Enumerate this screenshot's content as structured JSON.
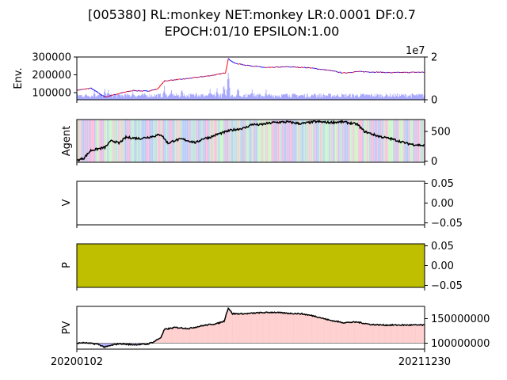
{
  "title": {
    "line1": "[005380] RL:monkey NET:monkey LR:0.0001 DF:0.7",
    "line2": "EPOCH:01/10 EPSILON:1.00"
  },
  "x_labels": {
    "start": "20200102",
    "end": "20211230"
  },
  "colors": {
    "price_up": "#ff0000",
    "price_down": "#0000ff",
    "volume": "#0000ff",
    "agent_line": "#000000",
    "buy_band": "#ff69b4",
    "sell_band": "#6495ed",
    "hold_band": "#90ee90",
    "policy_fill": "#bfbf00",
    "pv_profit_fill": "#ffcccc",
    "pv_loss_fill": "#aaaaff"
  },
  "chart_data": [
    {
      "type": "line",
      "name": "env",
      "ylabel": "Env.",
      "ylim": [
        60000,
        300000
      ],
      "yticks": [
        "100000",
        "200000",
        "300000"
      ],
      "secondary_ylim": [
        0,
        20000000
      ],
      "secondary_yticks": [
        "0",
        "2"
      ],
      "secondary_offset_label": "1e7",
      "price_keyframes": [
        [
          0,
          113000
        ],
        [
          20,
          125000
        ],
        [
          40,
          75000
        ],
        [
          60,
          95000
        ],
        [
          80,
          112000
        ],
        [
          100,
          108000
        ],
        [
          115,
          120000
        ],
        [
          125,
          165000
        ],
        [
          135,
          170000
        ],
        [
          150,
          175000
        ],
        [
          170,
          185000
        ],
        [
          190,
          195000
        ],
        [
          205,
          205000
        ],
        [
          212,
          212000
        ],
        [
          216,
          290000
        ],
        [
          225,
          265000
        ],
        [
          240,
          255000
        ],
        [
          270,
          240000
        ],
        [
          300,
          245000
        ],
        [
          330,
          240000
        ],
        [
          360,
          225000
        ],
        [
          380,
          210000
        ],
        [
          400,
          218000
        ],
        [
          430,
          215000
        ],
        [
          447,
          212000
        ],
        [
          496,
          215000
        ]
      ],
      "volume_baseline": 2000000,
      "volume_spikes": [
        [
          25,
          5000000
        ],
        [
          40,
          6500000
        ],
        [
          45,
          5500000
        ],
        [
          80,
          4500000
        ],
        [
          125,
          7000000
        ],
        [
          135,
          5000000
        ],
        [
          150,
          6000000
        ],
        [
          170,
          4500000
        ],
        [
          190,
          5500000
        ],
        [
          200,
          6000000
        ],
        [
          210,
          9000000
        ],
        [
          216,
          18000000
        ],
        [
          230,
          7000000
        ],
        [
          250,
          6000000
        ],
        [
          270,
          5000000
        ],
        [
          300,
          4000000
        ],
        [
          340,
          3500000
        ]
      ]
    },
    {
      "type": "line",
      "name": "agent",
      "ylabel": "Agent",
      "ylim": [
        -20,
        700
      ],
      "yticks": [
        "0",
        "500"
      ],
      "keyframes": [
        [
          0,
          10
        ],
        [
          10,
          50
        ],
        [
          20,
          180
        ],
        [
          40,
          230
        ],
        [
          50,
          350
        ],
        [
          60,
          300
        ],
        [
          70,
          400
        ],
        [
          90,
          380
        ],
        [
          110,
          420
        ],
        [
          120,
          450
        ],
        [
          130,
          300
        ],
        [
          140,
          350
        ],
        [
          150,
          370
        ],
        [
          170,
          310
        ],
        [
          180,
          380
        ],
        [
          190,
          400
        ],
        [
          200,
          450
        ],
        [
          220,
          520
        ],
        [
          240,
          560
        ],
        [
          250,
          620
        ],
        [
          260,
          610
        ],
        [
          280,
          650
        ],
        [
          300,
          660
        ],
        [
          320,
          630
        ],
        [
          340,
          665
        ],
        [
          360,
          650
        ],
        [
          380,
          660
        ],
        [
          400,
          620
        ],
        [
          410,
          500
        ],
        [
          430,
          420
        ],
        [
          450,
          370
        ],
        [
          470,
          300
        ],
        [
          480,
          280
        ],
        [
          496,
          260
        ]
      ]
    },
    {
      "type": "line",
      "name": "value",
      "ylabel": "V",
      "ylim": [
        -0.055,
        0.055
      ],
      "yticks": [
        "0.05",
        "0.00",
        "−0.05"
      ]
    },
    {
      "type": "area",
      "name": "policy",
      "ylabel": "P",
      "ylim": [
        -0.055,
        0.055
      ],
      "yticks": [
        "0.05",
        "0.00",
        "−0.05"
      ]
    },
    {
      "type": "area",
      "name": "pv",
      "ylabel": "PV",
      "ylim": [
        88000000,
        175000000
      ],
      "yticks": [
        "150000000",
        "100000000"
      ],
      "baseline": 100000000,
      "keyframes": [
        [
          0,
          100000000
        ],
        [
          10,
          101000000
        ],
        [
          30,
          98000000
        ],
        [
          40,
          92000000
        ],
        [
          50,
          96000000
        ],
        [
          60,
          99000000
        ],
        [
          80,
          97000000
        ],
        [
          100,
          98000000
        ],
        [
          110,
          103000000
        ],
        [
          120,
          112000000
        ],
        [
          125,
          128000000
        ],
        [
          140,
          132000000
        ],
        [
          160,
          130000000
        ],
        [
          180,
          136000000
        ],
        [
          200,
          140000000
        ],
        [
          210,
          145000000
        ],
        [
          216,
          172000000
        ],
        [
          222,
          160000000
        ],
        [
          240,
          160000000
        ],
        [
          260,
          162000000
        ],
        [
          280,
          163000000
        ],
        [
          300,
          161000000
        ],
        [
          320,
          160000000
        ],
        [
          340,
          155000000
        ],
        [
          360,
          147000000
        ],
        [
          380,
          142000000
        ],
        [
          400,
          143000000
        ],
        [
          420,
          138000000
        ],
        [
          440,
          137000000
        ],
        [
          460,
          137000000
        ],
        [
          496,
          137000000
        ]
      ]
    }
  ]
}
